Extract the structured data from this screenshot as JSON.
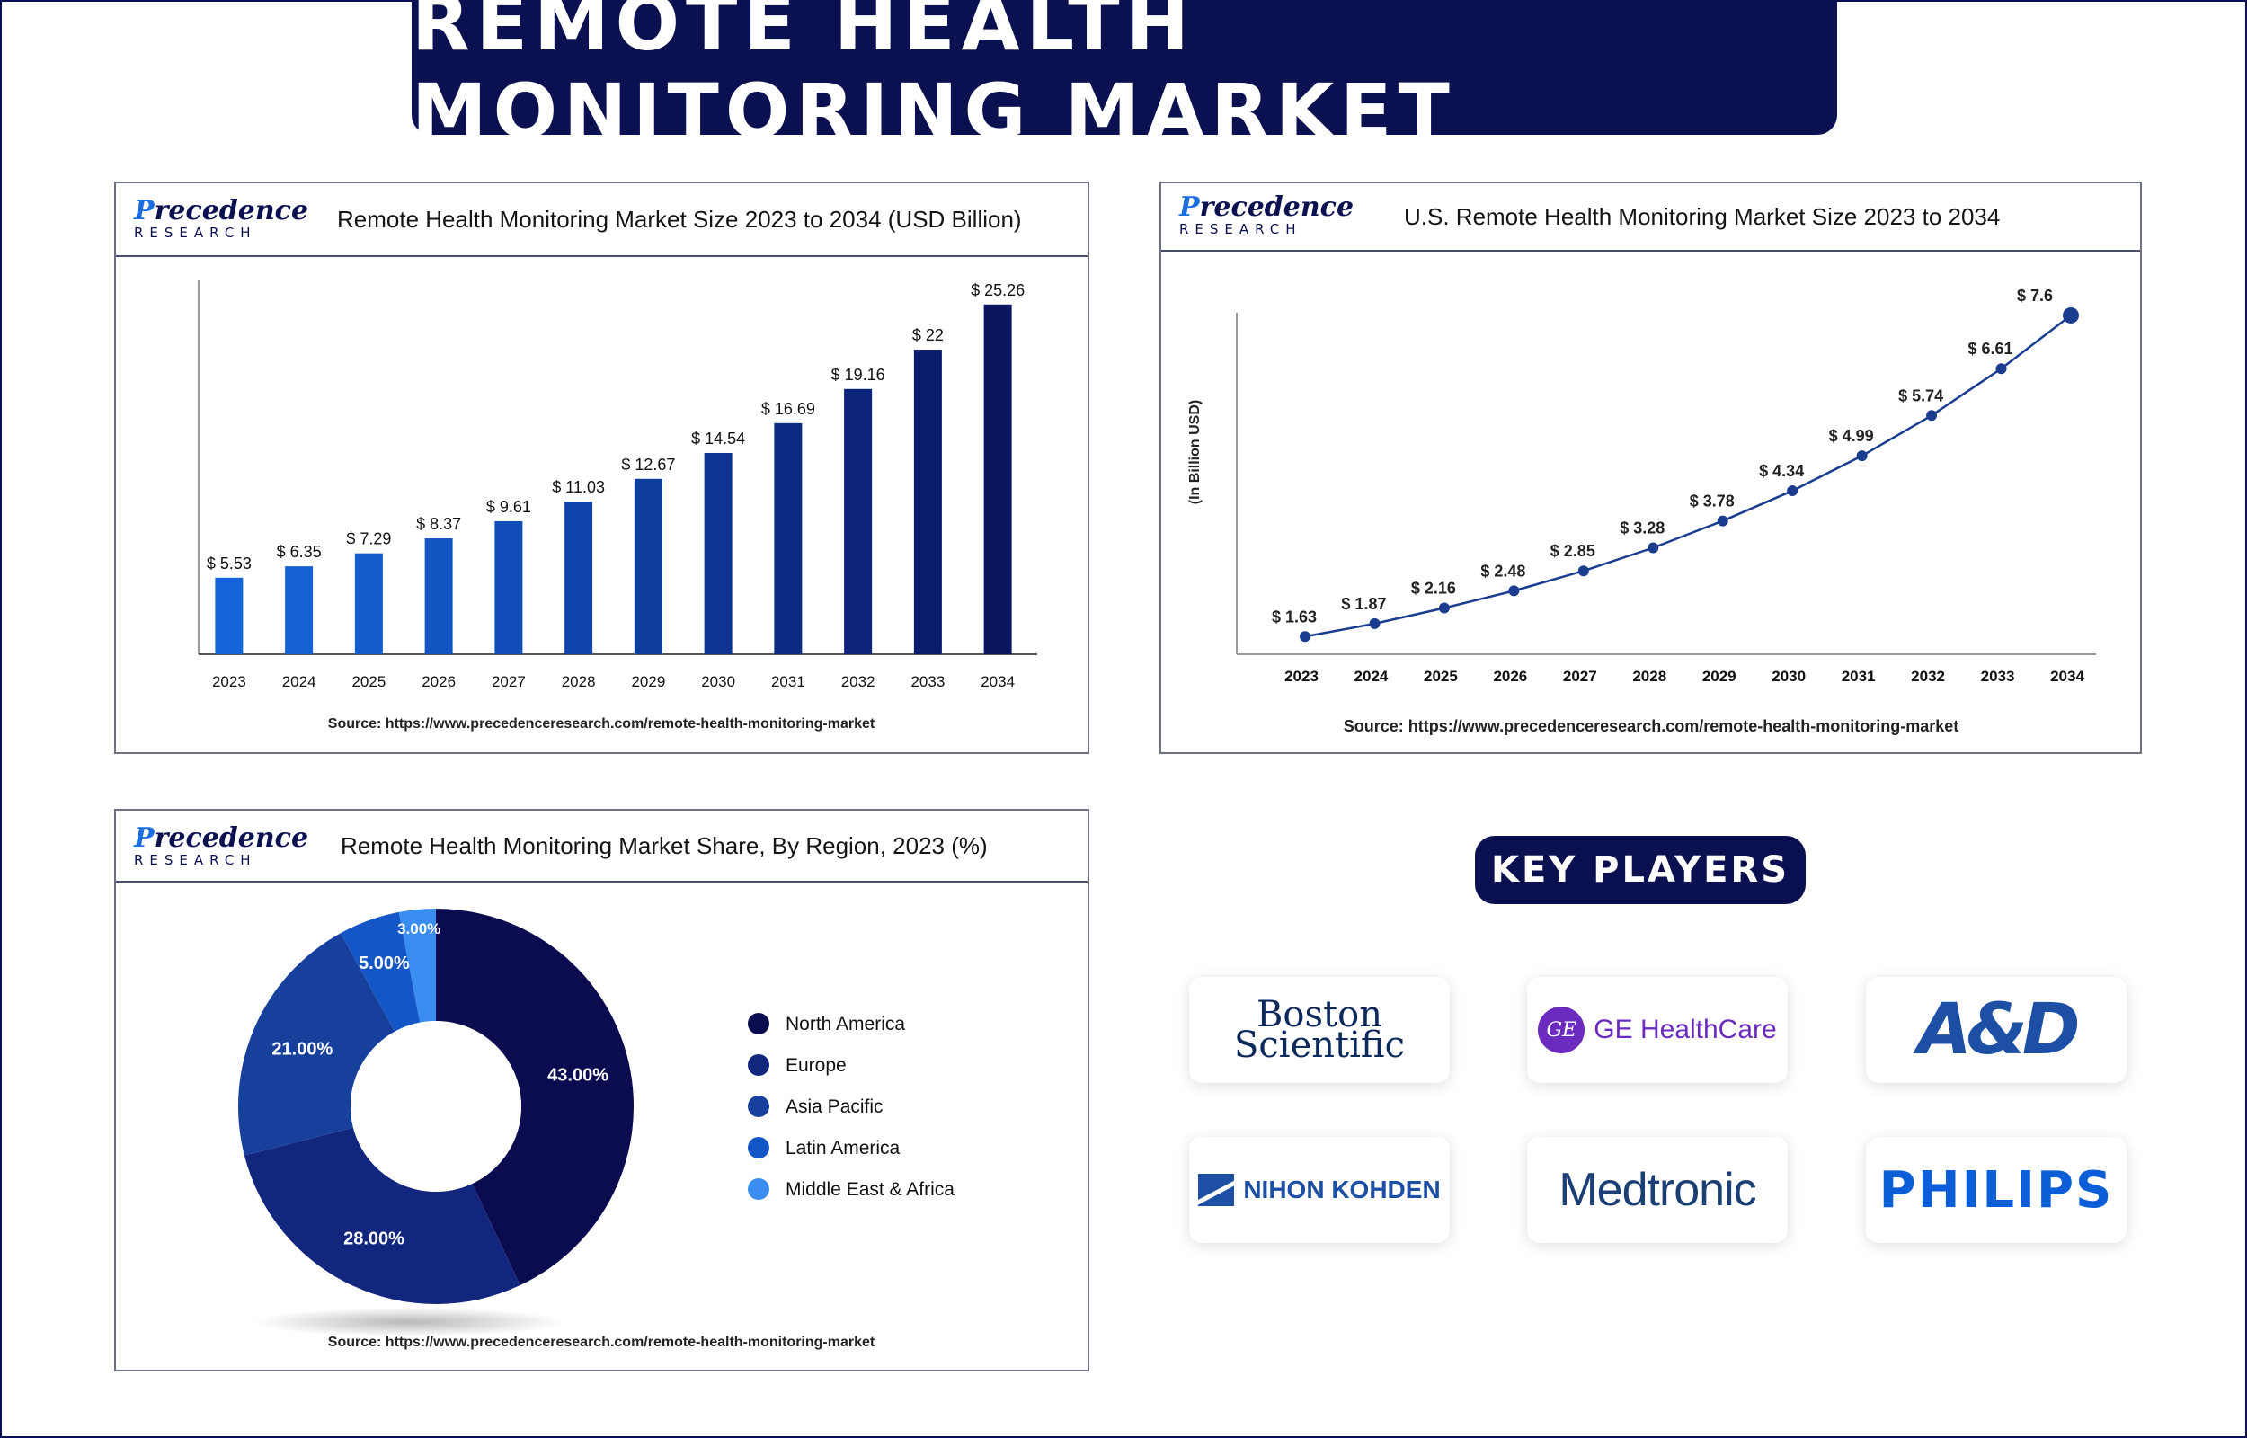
{
  "page_title": "REMOTE HEALTH MONITORING MARKET",
  "brand": {
    "name_prefix": "P",
    "name_rest": "recedence",
    "sub": "RESEARCH"
  },
  "chart_data": [
    {
      "id": "global",
      "type": "bar",
      "title": "Remote Health Monitoring Market Size 2023 to 2034 (USD Billion)",
      "categories": [
        "2023",
        "2024",
        "2025",
        "2026",
        "2027",
        "2028",
        "2029",
        "2030",
        "2031",
        "2032",
        "2033",
        "2034"
      ],
      "values": [
        5.53,
        6.35,
        7.29,
        8.37,
        9.61,
        11.03,
        12.67,
        14.54,
        16.69,
        19.16,
        22,
        25.26
      ],
      "value_labels": [
        "$ 5.53",
        "$ 6.35",
        "$ 7.29",
        "$ 8.37",
        "$ 9.61",
        "$ 11.03",
        "$ 12.67",
        "$ 14.54",
        "$ 16.69",
        "$ 19.16",
        "$ 22",
        "$ 25.26"
      ],
      "bar_colors": [
        "#1565d8",
        "#1561d4",
        "#145bcc",
        "#1354c3",
        "#124cb8",
        "#1144ac",
        "#0f3c9f",
        "#0e3392",
        "#0c2b84",
        "#0b2378",
        "#0a1c6b",
        "#0a1760"
      ],
      "ylim": [
        0,
        27
      ],
      "source": "Source: https://www.precedenceresearch.com/remote-health-monitoring-market"
    },
    {
      "id": "us",
      "type": "line",
      "title": "U.S. Remote Health Monitoring Market Size 2023 to 2034",
      "ylabel": "(In Billion USD)",
      "x": [
        "2023",
        "2024",
        "2025",
        "2026",
        "2027",
        "2028",
        "2029",
        "2030",
        "2031",
        "2032",
        "2033",
        "2034"
      ],
      "y": [
        1.63,
        1.87,
        2.16,
        2.48,
        2.85,
        3.28,
        3.78,
        4.34,
        4.99,
        5.74,
        6.61,
        7.6
      ],
      "value_labels": [
        "$ 1.63",
        "$ 1.87",
        "$ 2.16",
        "$ 2.48",
        "$ 2.85",
        "$ 3.28",
        "$ 3.78",
        "$ 4.34",
        "$ 4.99",
        "$ 5.74",
        "$ 6.61",
        "$ 7.6"
      ],
      "line_color": "#1a3d8f",
      "ylim": [
        1.3,
        7.9
      ],
      "source": "Source: https://www.precedenceresearch.com/remote-health-monitoring-market"
    },
    {
      "id": "region",
      "type": "pie",
      "title": "Remote Health Monitoring Market Share, By Region, 2023 (%)",
      "labels": [
        "North America",
        "Europe",
        "Asia Pacific",
        "Latin America",
        "Middle East & Africa"
      ],
      "values": [
        43,
        28,
        21,
        5,
        3
      ],
      "value_labels": [
        "43.00%",
        "28.00%",
        "21.00%",
        "5.00%",
        "3.00%"
      ],
      "colors": [
        "#0a0c4f",
        "#13267e",
        "#17409d",
        "#1556c7",
        "#3a8df0"
      ],
      "donut": true,
      "source": "Source: https://www.precedenceresearch.com/remote-health-monitoring-market"
    }
  ],
  "key_players": {
    "heading": "KEY PLAYERS",
    "boston": [
      "Boston",
      "Scientific"
    ],
    "ge": {
      "mark": "GE",
      "name": "GE HealthCare"
    },
    "and": "A&D",
    "nihon": "NIHON KOHDEN",
    "medtronic": "Medtronic",
    "philips": "PHILIPS"
  }
}
